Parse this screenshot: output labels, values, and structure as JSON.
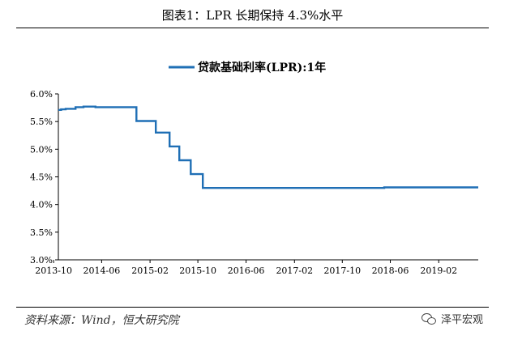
{
  "figure": {
    "title": "图表1：LPR 长期保持 4.3%水平",
    "source": "资料来源：Wind，恒大研究院",
    "watermark": "泽平宏观"
  },
  "chart_data": {
    "type": "line",
    "title": "",
    "xlabel": "",
    "ylabel": "",
    "legend": {
      "position": "top-center",
      "entries": [
        "贷款基础利率(LPR):1年"
      ]
    },
    "grid": false,
    "ylim": [
      3.0,
      6.0
    ],
    "y_ticks": [
      "3.0%",
      "3.5%",
      "4.0%",
      "4.5%",
      "5.0%",
      "5.5%",
      "6.0%"
    ],
    "x_ticks": [
      "2013-10",
      "2014-06",
      "2015-02",
      "2015-10",
      "2016-06",
      "2017-02",
      "2017-10",
      "2018-06",
      "2019-02"
    ],
    "x_range": [
      "2013-10-25",
      "2019-08-20"
    ],
    "series": [
      {
        "name": "贷款基础利率(LPR):1年",
        "color": "#1f6fb5",
        "step": true,
        "points": [
          [
            "2013-10-25",
            5.71
          ],
          [
            "2013-11-08",
            5.72
          ],
          [
            "2013-12-01",
            5.73
          ],
          [
            "2014-01-20",
            5.76
          ],
          [
            "2014-03-01",
            5.77
          ],
          [
            "2014-05-01",
            5.76
          ],
          [
            "2014-11-24",
            5.51
          ],
          [
            "2015-03-02",
            5.3
          ],
          [
            "2015-05-11",
            5.05
          ],
          [
            "2015-06-29",
            4.8
          ],
          [
            "2015-08-26",
            4.55
          ],
          [
            "2015-10-26",
            4.3
          ],
          [
            "2018-05-01",
            4.31
          ],
          [
            "2019-08-20",
            4.31
          ]
        ]
      }
    ]
  }
}
